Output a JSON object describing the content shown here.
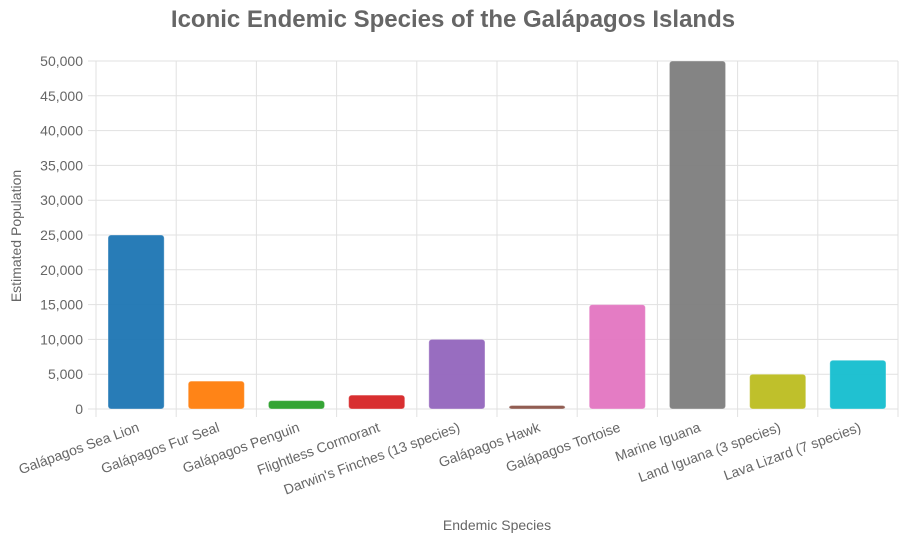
{
  "chart_data": {
    "type": "bar",
    "title": "Iconic Endemic Species of the Galápagos Islands",
    "xlabel": "Endemic Species",
    "ylabel": "Estimated Population",
    "ylim": [
      0,
      50000
    ],
    "yticks": [
      "0",
      "5,000",
      "10,000",
      "15,000",
      "20,000",
      "25,000",
      "30,000",
      "35,000",
      "40,000",
      "45,000",
      "50,000"
    ],
    "grid": true,
    "legend": "none",
    "categories": [
      "Galápagos Sea Lion",
      "Galápagos Fur Seal",
      "Galápagos Penguin",
      "Flightless Cormorant",
      "Darwin's Finches (13 species)",
      "Galápagos Hawk",
      "Galápagos Tortoise",
      "Marine Iguana",
      "Land Iguana (3 species)",
      "Lava Lizard (7 species)"
    ],
    "values": [
      25000,
      4000,
      1200,
      2000,
      10000,
      500,
      15000,
      50000,
      5000,
      7000
    ],
    "colors": [
      "#1f77b4",
      "#ff7f0e",
      "#2ca02c",
      "#d62728",
      "#9467bd",
      "#8c564b",
      "#e377c2",
      "#7f7f7f",
      "#bcbd22",
      "#17becf"
    ]
  }
}
